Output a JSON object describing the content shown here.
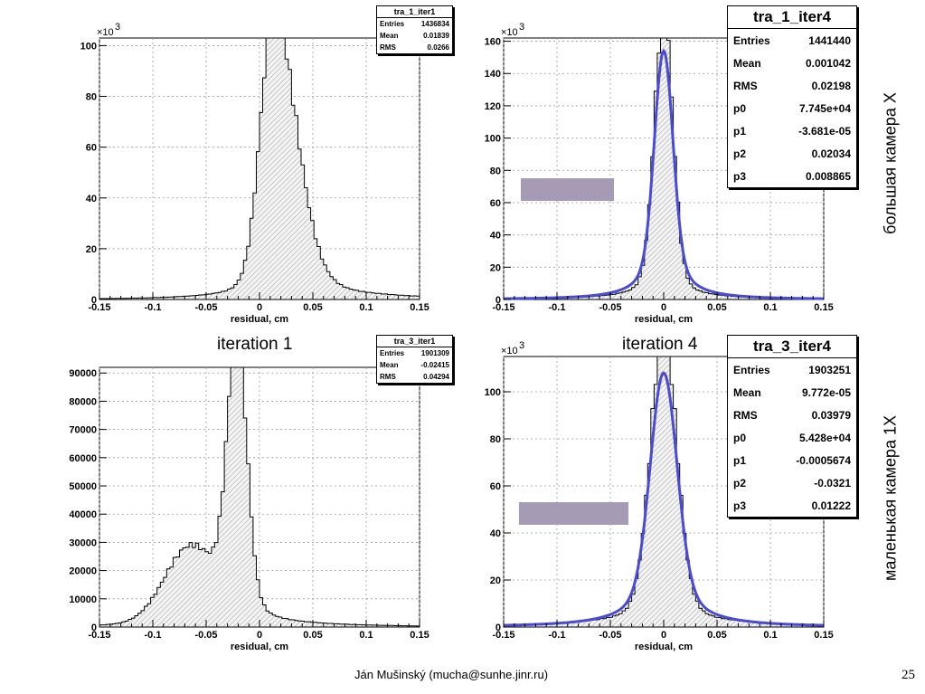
{
  "slide": {
    "iteration_label_1": "iteration 1",
    "iteration_label_4": "iteration 4",
    "side_label_top": "большая камера X",
    "side_label_bottom": "маленькая камера 1X",
    "footer": "Ján Mušinský (mucha@sunhe.jinr.ru)",
    "page_number": "25"
  },
  "colors": {
    "fit_line": "#4a4ad8",
    "hist_fill_hatch": "#aaaaaa",
    "highlight_box": "#a69bb4"
  },
  "chart_data": [
    {
      "type": "histogram",
      "name": "tra_1_iter1",
      "xlabel": "residual, cm",
      "ylabel": "",
      "y_multiplier": "×10",
      "y_multiplier_exp": "3",
      "xlim": [
        -0.15,
        0.15
      ],
      "ylim": [
        0,
        103
      ],
      "x_ticks": [
        -0.15,
        -0.1,
        -0.05,
        0,
        0.05,
        0.1,
        0.15
      ],
      "x_tick_labels": [
        "-0.15",
        "-0.1",
        "-0.05",
        "0",
        "0.05",
        "0.1",
        "0.15"
      ],
      "y_ticks": [
        0,
        20,
        40,
        60,
        80,
        100
      ],
      "y_tick_labels": [
        "0",
        "20",
        "40",
        "60",
        "80",
        "100"
      ],
      "grid": true,
      "stats": {
        "title": "tra_1_iter1",
        "rows": [
          [
            "Entries",
            "1436834"
          ],
          [
            "Mean",
            "0.01839"
          ],
          [
            "RMS",
            "0.0266"
          ]
        ]
      },
      "shape": {
        "peak_x": 0.013,
        "peak_y": 97,
        "sigma_left": 0.012,
        "sigma_right": 0.021,
        "tail_left": 1.5,
        "tail_right": 3,
        "tail_width": 0.06
      },
      "fit": null
    },
    {
      "type": "histogram",
      "name": "tra_1_iter4",
      "xlabel": "residual, cm",
      "ylabel": "",
      "y_multiplier": "×10",
      "y_multiplier_exp": "3",
      "xlim": [
        -0.15,
        0.15
      ],
      "ylim": [
        0,
        162
      ],
      "x_ticks": [
        -0.15,
        -0.1,
        -0.05,
        0,
        0.05,
        0.1,
        0.15
      ],
      "x_tick_labels": [
        "-0.15",
        "-0.1",
        "-0.05",
        "0",
        "0.05",
        "0.1",
        "0.15"
      ],
      "y_ticks": [
        0,
        20,
        40,
        60,
        80,
        100,
        120,
        140,
        160
      ],
      "y_tick_labels": [
        "0",
        "20",
        "40",
        "60",
        "80",
        "100",
        "120",
        "140",
        "160"
      ],
      "grid": true,
      "stats": {
        "title": "tra_1_iter4",
        "rows": [
          [
            "Entries",
            "1441440"
          ],
          [
            "Mean",
            "0.001042"
          ],
          [
            "RMS",
            "0.02198"
          ],
          [
            "p0",
            "7.745e+04"
          ],
          [
            "p1",
            "-3.681e-05"
          ],
          [
            "p2",
            "0.02034"
          ],
          [
            "p3",
            "0.008865"
          ]
        ]
      },
      "shape": {
        "peak_x": 0.0,
        "peak_y": 155,
        "sigma_left": 0.0085,
        "sigma_right": 0.0085,
        "tail_left": 3,
        "tail_right": 3,
        "tail_width": 0.05
      },
      "fit": {
        "peak_x": 0.0,
        "peak_y": 154,
        "sigma": 0.0085
      }
    },
    {
      "type": "histogram",
      "name": "tra_3_iter1",
      "xlabel": "residual, cm",
      "ylabel": "",
      "y_multiplier": "",
      "y_multiplier_exp": "",
      "xlim": [
        -0.15,
        0.15
      ],
      "ylim": [
        0,
        92000
      ],
      "x_ticks": [
        -0.15,
        -0.1,
        -0.05,
        0,
        0.05,
        0.1,
        0.15
      ],
      "x_tick_labels": [
        "-0.15",
        "-0.1",
        "-0.05",
        "0",
        "0.05",
        "0.1",
        "0.15"
      ],
      "y_ticks": [
        0,
        10000,
        20000,
        30000,
        40000,
        50000,
        60000,
        70000,
        80000,
        90000
      ],
      "y_tick_labels": [
        "0",
        "10000",
        "20000",
        "30000",
        "40000",
        "50000",
        "60000",
        "70000",
        "80000",
        "90000"
      ],
      "grid": true,
      "stats": {
        "title": "tra_3_iter1",
        "rows": [
          [
            "Entries",
            "1901309"
          ],
          [
            "Mean",
            "-0.02415"
          ],
          [
            "RMS",
            "0.04294"
          ]
        ]
      },
      "shape": {
        "peak_x": -0.021,
        "peak_y": 86000,
        "sigma_left": 0.009,
        "sigma_right": 0.009,
        "broad_x": -0.065,
        "broad_y": 26000,
        "broad_sigma": 0.024,
        "tail_left": 3000,
        "tail_right": 3000,
        "tail_width": 0.07
      },
      "fit": null
    },
    {
      "type": "histogram",
      "name": "tra_3_iter4",
      "xlabel": "residual, cm",
      "ylabel": "",
      "y_multiplier": "×10",
      "y_multiplier_exp": "3",
      "xlim": [
        -0.15,
        0.15
      ],
      "ylim": [
        0,
        115
      ],
      "x_ticks": [
        -0.15,
        -0.1,
        -0.05,
        0,
        0.05,
        0.1,
        0.15
      ],
      "x_tick_labels": [
        "-0.15",
        "-0.1",
        "-0.05",
        "0",
        "0.05",
        "0.1",
        "0.15"
      ],
      "y_ticks": [
        0,
        20,
        40,
        60,
        80,
        100
      ],
      "y_tick_labels": [
        "0",
        "20",
        "40",
        "60",
        "80",
        "100"
      ],
      "grid": true,
      "stats": {
        "title": "tra_3_iter4",
        "rows": [
          [
            "Entries",
            "1903251"
          ],
          [
            "Mean",
            "9.772e-05"
          ],
          [
            "RMS",
            "0.03979"
          ],
          [
            "p0",
            "5.428e+04"
          ],
          [
            "p1",
            "-0.0005674"
          ],
          [
            "p2",
            "-0.0321"
          ],
          [
            "p3",
            "0.01222"
          ]
        ]
      },
      "shape": {
        "peak_x": 0.0,
        "peak_y": 109,
        "sigma_left": 0.012,
        "sigma_right": 0.012,
        "tail_left": 3,
        "tail_right": 3,
        "tail_width": 0.09
      },
      "fit": {
        "peak_x": 0.0,
        "peak_y": 108,
        "sigma": 0.0122
      }
    }
  ]
}
